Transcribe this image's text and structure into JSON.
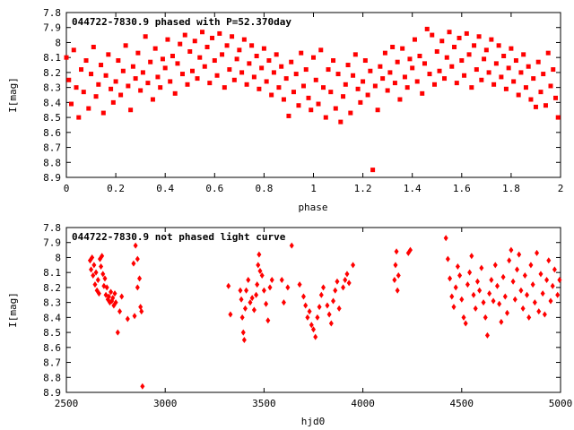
{
  "chart_data": [
    {
      "type": "scatter",
      "title": "044722-7830.9 phased with P=52.370day",
      "xlabel": "phase",
      "ylabel": "I[mag]",
      "xlim": [
        0,
        2
      ],
      "ylim": [
        8.9,
        7.8
      ],
      "y_reversed": true,
      "xticks": [
        "0",
        "0.2",
        "0.4",
        "0.6",
        "0.8",
        "1",
        "1.2",
        "1.4",
        "1.6",
        "1.8",
        "2"
      ],
      "yticks": [
        "7.8",
        "7.9",
        "8",
        "8.1",
        "8.2",
        "8.3",
        "8.4",
        "8.5",
        "8.6",
        "8.7",
        "8.8",
        "8.9"
      ],
      "marker": "filled-square",
      "color": "#ff0000",
      "points": [
        [
          0.0,
          8.1
        ],
        [
          0.01,
          8.25
        ],
        [
          0.02,
          8.41
        ],
        [
          0.03,
          8.05
        ],
        [
          0.04,
          8.3
        ],
        [
          0.05,
          8.5
        ],
        [
          0.06,
          8.18
        ],
        [
          0.07,
          8.33
        ],
        [
          0.08,
          8.12
        ],
        [
          0.09,
          8.44
        ],
        [
          0.1,
          8.21
        ],
        [
          0.11,
          8.03
        ],
        [
          0.12,
          8.36
        ],
        [
          0.13,
          8.28
        ],
        [
          0.14,
          8.15
        ],
        [
          0.15,
          8.47
        ],
        [
          0.16,
          8.22
        ],
        [
          0.17,
          8.08
        ],
        [
          0.18,
          8.31
        ],
        [
          0.19,
          8.4
        ],
        [
          0.2,
          8.26
        ],
        [
          0.21,
          8.12
        ],
        [
          0.22,
          8.35
        ],
        [
          0.23,
          8.19
        ],
        [
          0.24,
          8.02
        ],
        [
          0.25,
          8.29
        ],
        [
          0.26,
          8.45
        ],
        [
          0.27,
          8.16
        ],
        [
          0.28,
          8.24
        ],
        [
          0.29,
          8.07
        ],
        [
          0.3,
          8.32
        ],
        [
          0.31,
          8.2
        ],
        [
          0.32,
          7.96
        ],
        [
          0.33,
          8.27
        ],
        [
          0.34,
          8.13
        ],
        [
          0.35,
          8.38
        ],
        [
          0.36,
          8.04
        ],
        [
          0.37,
          8.23
        ],
        [
          0.38,
          8.3
        ],
        [
          0.39,
          8.11
        ],
        [
          0.4,
          8.17
        ],
        [
          0.41,
          7.98
        ],
        [
          0.42,
          8.26
        ],
        [
          0.43,
          8.09
        ],
        [
          0.44,
          8.34
        ],
        [
          0.45,
          8.14
        ],
        [
          0.46,
          8.01
        ],
        [
          0.47,
          8.21
        ],
        [
          0.48,
          7.95
        ],
        [
          0.49,
          8.28
        ],
        [
          0.5,
          8.06
        ],
        [
          0.51,
          8.19
        ],
        [
          0.52,
          7.99
        ],
        [
          0.53,
          8.24
        ],
        [
          0.54,
          8.1
        ],
        [
          0.55,
          7.93
        ],
        [
          0.56,
          8.16
        ],
        [
          0.57,
          8.03
        ],
        [
          0.58,
          8.27
        ],
        [
          0.59,
          7.97
        ],
        [
          0.6,
          8.12
        ],
        [
          0.61,
          8.22
        ],
        [
          0.62,
          7.94
        ],
        [
          0.63,
          8.08
        ],
        [
          0.64,
          8.3
        ],
        [
          0.65,
          8.02
        ],
        [
          0.66,
          8.18
        ],
        [
          0.67,
          7.96
        ],
        [
          0.68,
          8.25
        ],
        [
          0.69,
          8.11
        ],
        [
          0.7,
          8.05
        ],
        [
          0.71,
          8.2
        ],
        [
          0.72,
          7.98
        ],
        [
          0.73,
          8.28
        ],
        [
          0.74,
          8.14
        ],
        [
          0.75,
          8.02
        ],
        [
          0.76,
          8.23
        ],
        [
          0.77,
          8.09
        ],
        [
          0.78,
          8.31
        ],
        [
          0.79,
          8.17
        ],
        [
          0.8,
          8.04
        ],
        [
          0.81,
          8.26
        ],
        [
          0.82,
          8.12
        ],
        [
          0.83,
          8.35
        ],
        [
          0.84,
          8.2
        ],
        [
          0.85,
          8.08
        ],
        [
          0.86,
          8.3
        ],
        [
          0.87,
          8.16
        ],
        [
          0.88,
          8.38
        ],
        [
          0.89,
          8.24
        ],
        [
          0.9,
          8.49
        ],
        [
          0.91,
          8.13
        ],
        [
          0.92,
          8.33
        ],
        [
          0.93,
          8.21
        ],
        [
          0.94,
          8.42
        ],
        [
          0.95,
          8.07
        ],
        [
          0.96,
          8.29
        ],
        [
          0.97,
          8.18
        ],
        [
          0.98,
          8.37
        ],
        [
          0.99,
          8.45
        ],
        [
          1.0,
          8.1
        ],
        [
          1.01,
          8.25
        ],
        [
          1.02,
          8.41
        ],
        [
          1.03,
          8.05
        ],
        [
          1.04,
          8.3
        ],
        [
          1.05,
          8.5
        ],
        [
          1.06,
          8.18
        ],
        [
          1.07,
          8.33
        ],
        [
          1.08,
          8.12
        ],
        [
          1.09,
          8.44
        ],
        [
          1.1,
          8.21
        ],
        [
          1.11,
          8.53
        ],
        [
          1.12,
          8.36
        ],
        [
          1.13,
          8.28
        ],
        [
          1.14,
          8.15
        ],
        [
          1.15,
          8.47
        ],
        [
          1.16,
          8.22
        ],
        [
          1.17,
          8.08
        ],
        [
          1.18,
          8.31
        ],
        [
          1.19,
          8.4
        ],
        [
          1.2,
          8.26
        ],
        [
          1.21,
          8.12
        ],
        [
          1.22,
          8.35
        ],
        [
          1.23,
          8.19
        ],
        [
          1.24,
          8.85
        ],
        [
          1.25,
          8.29
        ],
        [
          1.26,
          8.45
        ],
        [
          1.27,
          8.16
        ],
        [
          1.28,
          8.24
        ],
        [
          1.29,
          8.07
        ],
        [
          1.3,
          8.32
        ],
        [
          1.31,
          8.2
        ],
        [
          1.32,
          8.03
        ],
        [
          1.33,
          8.27
        ],
        [
          1.34,
          8.13
        ],
        [
          1.35,
          8.38
        ],
        [
          1.36,
          8.04
        ],
        [
          1.37,
          8.23
        ],
        [
          1.38,
          8.3
        ],
        [
          1.39,
          8.11
        ],
        [
          1.4,
          8.17
        ],
        [
          1.41,
          7.98
        ],
        [
          1.42,
          8.26
        ],
        [
          1.43,
          8.09
        ],
        [
          1.44,
          8.34
        ],
        [
          1.45,
          8.14
        ],
        [
          1.46,
          7.91
        ],
        [
          1.47,
          8.21
        ],
        [
          1.48,
          7.95
        ],
        [
          1.49,
          8.28
        ],
        [
          1.5,
          8.06
        ],
        [
          1.51,
          8.19
        ],
        [
          1.52,
          7.99
        ],
        [
          1.53,
          8.24
        ],
        [
          1.54,
          8.1
        ],
        [
          1.55,
          7.93
        ],
        [
          1.56,
          8.16
        ],
        [
          1.57,
          8.03
        ],
        [
          1.58,
          8.27
        ],
        [
          1.59,
          7.97
        ],
        [
          1.6,
          8.12
        ],
        [
          1.61,
          8.22
        ],
        [
          1.62,
          7.94
        ],
        [
          1.63,
          8.08
        ],
        [
          1.64,
          8.3
        ],
        [
          1.65,
          8.02
        ],
        [
          1.66,
          8.18
        ],
        [
          1.67,
          7.96
        ],
        [
          1.68,
          8.25
        ],
        [
          1.69,
          8.11
        ],
        [
          1.7,
          8.05
        ],
        [
          1.71,
          8.2
        ],
        [
          1.72,
          7.98
        ],
        [
          1.73,
          8.28
        ],
        [
          1.74,
          8.14
        ],
        [
          1.75,
          8.02
        ],
        [
          1.76,
          8.23
        ],
        [
          1.77,
          8.09
        ],
        [
          1.78,
          8.31
        ],
        [
          1.79,
          8.17
        ],
        [
          1.8,
          8.04
        ],
        [
          1.81,
          8.26
        ],
        [
          1.82,
          8.12
        ],
        [
          1.83,
          8.35
        ],
        [
          1.84,
          8.2
        ],
        [
          1.85,
          8.08
        ],
        [
          1.86,
          8.3
        ],
        [
          1.87,
          8.16
        ],
        [
          1.88,
          8.38
        ],
        [
          1.89,
          8.24
        ],
        [
          1.9,
          8.43
        ],
        [
          1.91,
          8.13
        ],
        [
          1.92,
          8.33
        ],
        [
          1.93,
          8.21
        ],
        [
          1.94,
          8.42
        ],
        [
          1.95,
          8.07
        ],
        [
          1.96,
          8.29
        ],
        [
          1.97,
          8.18
        ],
        [
          1.98,
          8.37
        ],
        [
          1.99,
          8.5
        ]
      ]
    },
    {
      "type": "scatter",
      "title": "044722-7830.9 not phased light curve",
      "xlabel": "hjd0",
      "ylabel": "I[mag]",
      "xlim": [
        2500,
        5000
      ],
      "ylim": [
        8.9,
        7.8
      ],
      "y_reversed": true,
      "xticks": [
        "2500",
        "3000",
        "3500",
        "4000",
        "4500",
        "5000"
      ],
      "yticks": [
        "7.8",
        "7.9",
        "8",
        "8.1",
        "8.2",
        "8.3",
        "8.4",
        "8.5",
        "8.6",
        "8.7",
        "8.8",
        "8.9"
      ],
      "marker": "filled-diamond",
      "color": "#ff0000",
      "points": [
        [
          2620,
          8.02
        ],
        [
          2625,
          8.08
        ],
        [
          2630,
          8.0
        ],
        [
          2635,
          8.12
        ],
        [
          2640,
          8.05
        ],
        [
          2645,
          8.18
        ],
        [
          2650,
          8.1
        ],
        [
          2655,
          8.22
        ],
        [
          2660,
          8.15
        ],
        [
          2665,
          8.24
        ],
        [
          2670,
          8.01
        ],
        [
          2675,
          8.06
        ],
        [
          2680,
          7.99
        ],
        [
          2685,
          8.11
        ],
        [
          2690,
          8.19
        ],
        [
          2695,
          8.14
        ],
        [
          2700,
          8.25
        ],
        [
          2705,
          8.2
        ],
        [
          2710,
          8.28
        ],
        [
          2715,
          8.26
        ],
        [
          2720,
          8.3
        ],
        [
          2725,
          8.23
        ],
        [
          2730,
          8.29
        ],
        [
          2735,
          8.27
        ],
        [
          2740,
          8.32
        ],
        [
          2745,
          8.24
        ],
        [
          2750,
          8.3
        ],
        [
          2760,
          8.5
        ],
        [
          2770,
          8.36
        ],
        [
          2780,
          8.26
        ],
        [
          2810,
          8.41
        ],
        [
          2840,
          8.04
        ],
        [
          2850,
          7.92
        ],
        [
          2860,
          8.01
        ],
        [
          2870,
          8.14
        ],
        [
          2875,
          8.33
        ],
        [
          2880,
          8.36
        ],
        [
          2885,
          8.86
        ],
        [
          2860,
          8.2
        ],
        [
          2845,
          8.39
        ],
        [
          3320,
          8.19
        ],
        [
          3330,
          8.38
        ],
        [
          3380,
          8.22
        ],
        [
          3385,
          8.28
        ],
        [
          3390,
          8.4
        ],
        [
          3395,
          8.5
        ],
        [
          3400,
          8.55
        ],
        [
          3405,
          8.34
        ],
        [
          3410,
          8.22
        ],
        [
          3420,
          8.15
        ],
        [
          3430,
          8.3
        ],
        [
          3440,
          8.27
        ],
        [
          3450,
          8.35
        ],
        [
          3460,
          8.25
        ],
        [
          3465,
          8.18
        ],
        [
          3470,
          8.05
        ],
        [
          3475,
          7.98
        ],
        [
          3480,
          8.09
        ],
        [
          3490,
          8.12
        ],
        [
          3500,
          8.22
        ],
        [
          3510,
          8.31
        ],
        [
          3520,
          8.42
        ],
        [
          3530,
          8.2
        ],
        [
          3540,
          8.15
        ],
        [
          3590,
          8.15
        ],
        [
          3600,
          8.3
        ],
        [
          3620,
          8.2
        ],
        [
          3640,
          7.92
        ],
        [
          3680,
          8.18
        ],
        [
          3700,
          8.26
        ],
        [
          3710,
          8.32
        ],
        [
          3720,
          8.4
        ],
        [
          3730,
          8.36
        ],
        [
          3740,
          8.45
        ],
        [
          3750,
          8.48
        ],
        [
          3760,
          8.53
        ],
        [
          3770,
          8.4
        ],
        [
          3780,
          8.33
        ],
        [
          3790,
          8.25
        ],
        [
          3800,
          8.2
        ],
        [
          3820,
          8.32
        ],
        [
          3830,
          8.38
        ],
        [
          3840,
          8.44
        ],
        [
          3850,
          8.29
        ],
        [
          3860,
          8.22
        ],
        [
          3870,
          8.16
        ],
        [
          3880,
          8.34
        ],
        [
          3900,
          8.2
        ],
        [
          3910,
          8.15
        ],
        [
          3920,
          8.11
        ],
        [
          3930,
          8.17
        ],
        [
          3950,
          8.05
        ],
        [
          4160,
          8.15
        ],
        [
          4165,
          8.05
        ],
        [
          4170,
          7.96
        ],
        [
          4175,
          8.22
        ],
        [
          4180,
          8.12
        ],
        [
          4230,
          7.97
        ],
        [
          4240,
          7.95
        ],
        [
          4420,
          7.87
        ],
        [
          4430,
          8.01
        ],
        [
          4440,
          8.14
        ],
        [
          4450,
          8.26
        ],
        [
          4460,
          8.33
        ],
        [
          4470,
          8.2
        ],
        [
          4480,
          8.06
        ],
        [
          4490,
          8.12
        ],
        [
          4500,
          8.28
        ],
        [
          4510,
          8.4
        ],
        [
          4520,
          8.44
        ],
        [
          4530,
          8.18
        ],
        [
          4540,
          8.1
        ],
        [
          4550,
          7.99
        ],
        [
          4560,
          8.25
        ],
        [
          4570,
          8.34
        ],
        [
          4580,
          8.16
        ],
        [
          4590,
          8.22
        ],
        [
          4600,
          8.07
        ],
        [
          4610,
          8.3
        ],
        [
          4620,
          8.4
        ],
        [
          4630,
          8.52
        ],
        [
          4640,
          8.24
        ],
        [
          4650,
          8.15
        ],
        [
          4660,
          8.29
        ],
        [
          4670,
          8.05
        ],
        [
          4680,
          8.19
        ],
        [
          4690,
          8.31
        ],
        [
          4700,
          8.43
        ],
        [
          4710,
          8.13
        ],
        [
          4720,
          8.26
        ],
        [
          4730,
          8.37
        ],
        [
          4740,
          8.02
        ],
        [
          4750,
          7.95
        ],
        [
          4760,
          8.16
        ],
        [
          4770,
          8.28
        ],
        [
          4780,
          8.08
        ],
        [
          4790,
          7.98
        ],
        [
          4800,
          8.22
        ],
        [
          4810,
          8.34
        ],
        [
          4820,
          8.12
        ],
        [
          4830,
          8.25
        ],
        [
          4840,
          8.4
        ],
        [
          4850,
          8.05
        ],
        [
          4860,
          8.18
        ],
        [
          4870,
          8.3
        ],
        [
          4880,
          7.97
        ],
        [
          4890,
          8.36
        ],
        [
          4900,
          8.11
        ],
        [
          4910,
          8.24
        ],
        [
          4920,
          8.38
        ],
        [
          4930,
          8.15
        ],
        [
          4940,
          8.02
        ],
        [
          4950,
          8.29
        ],
        [
          4960,
          8.19
        ],
        [
          4970,
          8.08
        ],
        [
          4985,
          8.25
        ],
        [
          4995,
          8.15
        ]
      ]
    }
  ]
}
